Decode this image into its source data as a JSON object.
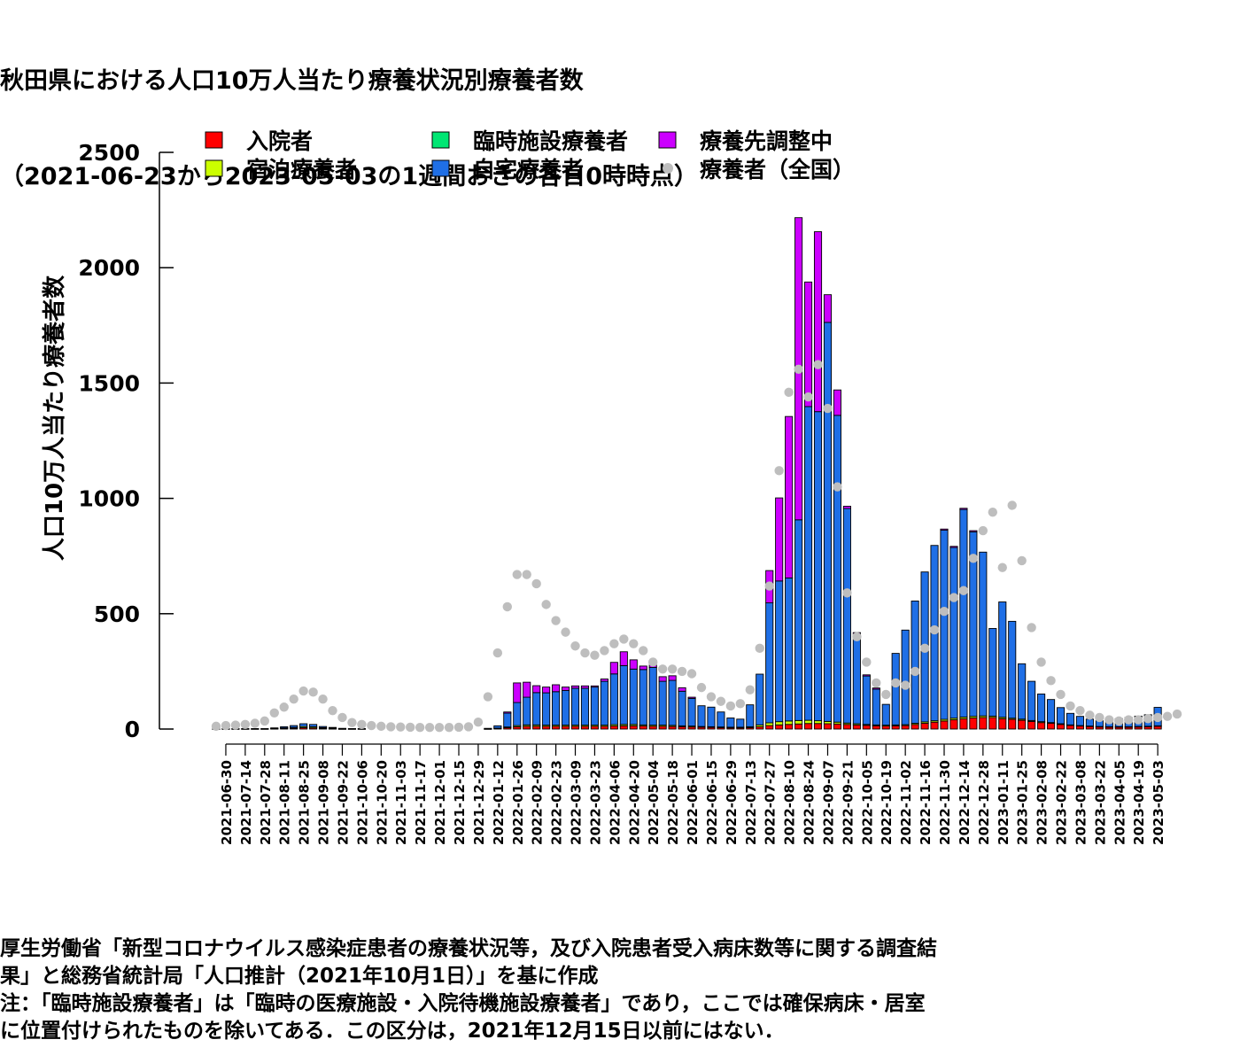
{
  "title_line1": "秋田県における人口10万人当たり療養状況別療養者数",
  "title_line2": "（2021-06-23から2023-05-03の1週間おきの各日0時時点）",
  "notes": [
    "厚生労働省「新型コロナウイルス感染症患者の療養状況等，及び入院患者受入病床数等に関する調査結",
    "果」と総務省統計局「人口推計（2021年10月1日）」を基に作成",
    "注：「臨時施設療養者」は「臨時の医療施設・入院待機施設療養者」であり，ここでは確保病床・居室",
    "に位置付けられたものを除いてある．この区分は，2021年12月15日以前にはない．"
  ],
  "chart_data": {
    "type": "bar",
    "stacked": true,
    "ylabel": "人口10万人当たり療養者数",
    "xlabel": "",
    "ylim": [
      0,
      2500
    ],
    "yticks": [
      0,
      500,
      1000,
      1500,
      2000,
      2500
    ],
    "grid": false,
    "legend_position": "top",
    "dates": [
      "2021-06-23",
      "2021-06-30",
      "2021-07-07",
      "2021-07-14",
      "2021-07-21",
      "2021-07-28",
      "2021-08-04",
      "2021-08-11",
      "2021-08-18",
      "2021-08-25",
      "2021-09-01",
      "2021-09-08",
      "2021-09-15",
      "2021-09-22",
      "2021-09-29",
      "2021-10-06",
      "2021-10-13",
      "2021-10-20",
      "2021-10-27",
      "2021-11-03",
      "2021-11-10",
      "2021-11-17",
      "2021-11-24",
      "2021-12-01",
      "2021-12-08",
      "2021-12-15",
      "2021-12-22",
      "2021-12-29",
      "2022-01-05",
      "2022-01-12",
      "2022-01-19",
      "2022-01-26",
      "2022-02-02",
      "2022-02-09",
      "2022-02-16",
      "2022-02-23",
      "2022-03-02",
      "2022-03-09",
      "2022-03-16",
      "2022-03-23",
      "2022-03-30",
      "2022-04-06",
      "2022-04-13",
      "2022-04-20",
      "2022-04-27",
      "2022-05-04",
      "2022-05-11",
      "2022-05-18",
      "2022-05-25",
      "2022-06-01",
      "2022-06-08",
      "2022-06-15",
      "2022-06-22",
      "2022-06-29",
      "2022-07-06",
      "2022-07-13",
      "2022-07-20",
      "2022-07-27",
      "2022-08-03",
      "2022-08-10",
      "2022-08-17",
      "2022-08-24",
      "2022-08-31",
      "2022-09-07",
      "2022-09-14",
      "2022-09-21",
      "2022-09-28",
      "2022-10-05",
      "2022-10-12",
      "2022-10-19",
      "2022-10-26",
      "2022-11-02",
      "2022-11-09",
      "2022-11-16",
      "2022-11-23",
      "2022-11-30",
      "2022-12-07",
      "2022-12-14",
      "2022-12-21",
      "2022-12-28",
      "2023-01-04",
      "2023-01-11",
      "2023-01-18",
      "2023-01-25",
      "2023-02-01",
      "2023-02-08",
      "2023-02-15",
      "2023-02-22",
      "2023-03-01",
      "2023-03-08",
      "2023-03-15",
      "2023-03-22",
      "2023-03-29",
      "2023-04-05",
      "2023-04-12",
      "2023-04-19",
      "2023-04-26",
      "2023-05-03"
    ],
    "tick_labels": [
      "2021-06-30",
      "2021-07-14",
      "2021-07-28",
      "2021-08-11",
      "2021-08-25",
      "2021-09-08",
      "2021-09-22",
      "2021-10-06",
      "2021-10-20",
      "2021-11-03",
      "2021-11-17",
      "2021-12-01",
      "2021-12-15",
      "2021-12-29",
      "2022-01-12",
      "2022-01-26",
      "2022-02-09",
      "2022-02-23",
      "2022-03-09",
      "2022-03-23",
      "2022-04-06",
      "2022-04-20",
      "2022-05-04",
      "2022-05-18",
      "2022-06-01",
      "2022-06-15",
      "2022-06-29",
      "2022-07-13",
      "2022-07-27",
      "2022-08-10",
      "2022-08-24",
      "2022-09-07",
      "2022-09-21",
      "2022-10-05",
      "2022-10-19",
      "2022-11-02",
      "2022-11-16",
      "2022-11-30",
      "2022-12-14",
      "2022-12-28",
      "2023-01-11",
      "2023-01-25",
      "2023-02-08",
      "2023-02-22",
      "2023-03-08",
      "2023-03-22",
      "2023-04-05",
      "2023-04-19",
      "2023-05-03"
    ],
    "series": [
      {
        "name": "入院者",
        "color": "#ff0000",
        "values": [
          1,
          1,
          1,
          1,
          1,
          1,
          2,
          3,
          4,
          6,
          5,
          3,
          2,
          1,
          1,
          1,
          0,
          0,
          0,
          0,
          0,
          0,
          0,
          0,
          0,
          0,
          0,
          0,
          1,
          3,
          6,
          10,
          12,
          12,
          12,
          12,
          12,
          12,
          12,
          12,
          12,
          13,
          14,
          14,
          13,
          12,
          12,
          11,
          10,
          9,
          8,
          7,
          6,
          5,
          5,
          6,
          10,
          15,
          18,
          20,
          22,
          24,
          24,
          23,
          22,
          20,
          18,
          16,
          14,
          13,
          14,
          15,
          20,
          25,
          30,
          35,
          40,
          45,
          48,
          50,
          50,
          45,
          42,
          38,
          33,
          28,
          25,
          20,
          16,
          13,
          11,
          9,
          8,
          8,
          8,
          9,
          10,
          12
        ]
      },
      {
        "name": "宿泊療養者",
        "color": "#ccff00",
        "values": [
          1,
          1,
          1,
          1,
          1,
          1,
          1,
          2,
          3,
          5,
          5,
          3,
          2,
          1,
          1,
          1,
          0,
          0,
          0,
          0,
          0,
          0,
          0,
          0,
          0,
          0,
          0,
          0,
          0,
          1,
          3,
          5,
          6,
          6,
          5,
          5,
          5,
          5,
          5,
          5,
          5,
          6,
          6,
          6,
          5,
          5,
          5,
          5,
          4,
          4,
          3,
          3,
          3,
          3,
          3,
          4,
          8,
          12,
          14,
          15,
          15,
          14,
          12,
          10,
          8,
          6,
          5,
          4,
          4,
          4,
          4,
          4,
          5,
          6,
          6,
          7,
          7,
          7,
          7,
          7,
          6,
          6,
          5,
          5,
          4,
          4,
          3,
          3,
          2,
          2,
          2,
          2,
          2,
          2,
          2,
          2,
          2,
          2
        ]
      },
      {
        "name": "臨時施設療養者",
        "color": "#00e673",
        "values": [
          0,
          0,
          0,
          0,
          0,
          0,
          0,
          0,
          0,
          0,
          0,
          0,
          0,
          0,
          0,
          0,
          0,
          0,
          0,
          0,
          0,
          0,
          0,
          0,
          0,
          0,
          0,
          0,
          0,
          0,
          0,
          0,
          0,
          0,
          0,
          0,
          0,
          0,
          0,
          0,
          0,
          0,
          0,
          0,
          0,
          0,
          0,
          0,
          0,
          0,
          0,
          0,
          0,
          0,
          0,
          0,
          0,
          0,
          0,
          0,
          0,
          0,
          0,
          0,
          0,
          0,
          0,
          0,
          0,
          0,
          0,
          0,
          0,
          0,
          0,
          0,
          0,
          0,
          0,
          0,
          0,
          0,
          0,
          0,
          0,
          0,
          0,
          0,
          0,
          0,
          0,
          0,
          0,
          0,
          0,
          0,
          0,
          0
        ]
      },
      {
        "name": "自宅療養者",
        "color": "#1f6fe6",
        "values": [
          0,
          0,
          0,
          0,
          0,
          0,
          2,
          5,
          8,
          12,
          10,
          5,
          3,
          1,
          0,
          0,
          0,
          0,
          0,
          0,
          0,
          0,
          0,
          0,
          0,
          0,
          0,
          0,
          2,
          10,
          60,
          100,
          120,
          140,
          140,
          145,
          150,
          160,
          160,
          165,
          190,
          220,
          255,
          240,
          240,
          250,
          190,
          195,
          150,
          120,
          90,
          85,
          65,
          40,
          35,
          95,
          220,
          520,
          610,
          620,
          870,
          1360,
          1340,
          1730,
          1330,
          930,
          380,
          210,
          155,
          90,
          310,
          410,
          530,
          650,
          760,
          820,
          740,
          900,
          800,
          710,
          380,
          500,
          420,
          240,
          170,
          120,
          100,
          70,
          50,
          40,
          30,
          25,
          30,
          35,
          40,
          45,
          50,
          80
        ]
      },
      {
        "name": "療養先調整中",
        "color": "#cc00ff",
        "values": [
          0,
          0,
          0,
          0,
          0,
          0,
          0,
          0,
          0,
          0,
          0,
          0,
          0,
          0,
          0,
          0,
          0,
          0,
          0,
          0,
          0,
          0,
          0,
          0,
          0,
          0,
          0,
          0,
          0,
          0,
          5,
          85,
          65,
          30,
          25,
          30,
          15,
          10,
          10,
          5,
          10,
          50,
          60,
          40,
          15,
          10,
          20,
          20,
          15,
          5,
          0,
          0,
          0,
          0,
          0,
          0,
          0,
          140,
          360,
          700,
          1310,
          540,
          780,
          120,
          110,
          10,
          15,
          5,
          5,
          0,
          0,
          0,
          0,
          0,
          0,
          5,
          5,
          5,
          5,
          0,
          0,
          0,
          0,
          0,
          0,
          0,
          0,
          0,
          0,
          0,
          0,
          0,
          0,
          0,
          0,
          0,
          0,
          0
        ]
      }
    ],
    "national": {
      "name": "療養者（全国）",
      "color": "#bebebe",
      "values": [
        12,
        15,
        17,
        20,
        25,
        35,
        70,
        95,
        130,
        165,
        160,
        130,
        80,
        50,
        28,
        20,
        15,
        12,
        10,
        9,
        8,
        7,
        7,
        7,
        7,
        8,
        10,
        30,
        140,
        330,
        530,
        670,
        670,
        630,
        540,
        470,
        420,
        360,
        330,
        320,
        340,
        370,
        390,
        370,
        340,
        290,
        260,
        260,
        250,
        240,
        180,
        140,
        120,
        100,
        110,
        170,
        350,
        620,
        1120,
        1460,
        1560,
        1440,
        1580,
        1390,
        1050,
        590,
        400,
        290,
        200,
        150,
        200,
        190,
        250,
        350,
        430,
        510,
        570,
        600,
        740,
        860,
        940,
        700,
        970,
        730,
        440,
        290,
        210,
        150,
        100,
        80,
        60,
        50,
        40,
        35,
        40,
        40,
        45,
        50,
        55,
        65
      ]
    }
  }
}
